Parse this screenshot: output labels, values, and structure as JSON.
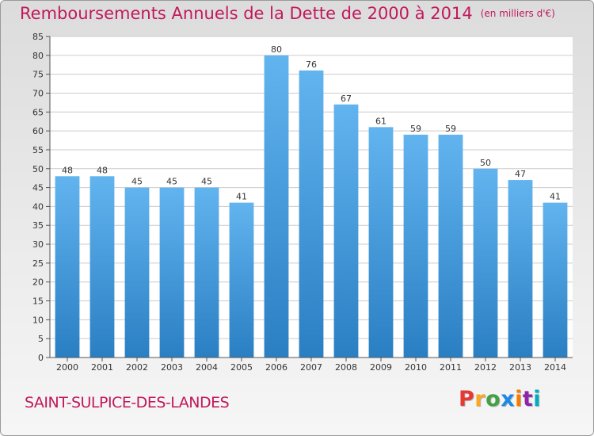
{
  "title": "Remboursements Annuels de la Dette de 2000 à 2014",
  "title_unit": "(en milliers d'€)",
  "commune": "SAINT-SULPICE-DES-LANDES",
  "logo": {
    "text": "Proxiti",
    "colors": [
      "#e53935",
      "#f9a825",
      "#43a047",
      "#1e88e5",
      "#f57c00",
      "#8e24aa",
      "#00acc1"
    ]
  },
  "colors": {
    "title": "#c2185b",
    "bar_top": "#62b4ef",
    "bar_bottom": "#2a7fc3"
  },
  "chart_data": {
    "type": "bar",
    "title": "Remboursements Annuels de la Dette de 2000 à 2014",
    "categories": [
      "2000",
      "2001",
      "2002",
      "2003",
      "2004",
      "2005",
      "2006",
      "2007",
      "2008",
      "2009",
      "2010",
      "2011",
      "2012",
      "2013",
      "2014"
    ],
    "values": [
      48,
      48,
      45,
      45,
      45,
      41,
      80,
      76,
      67,
      61,
      59,
      59,
      50,
      47,
      41
    ],
    "ylim": [
      0,
      85
    ],
    "yticks": [
      0,
      5,
      10,
      15,
      20,
      25,
      30,
      35,
      40,
      45,
      50,
      55,
      60,
      65,
      70,
      75,
      80,
      85
    ],
    "grid": true,
    "xlabel": "",
    "ylabel": ""
  }
}
